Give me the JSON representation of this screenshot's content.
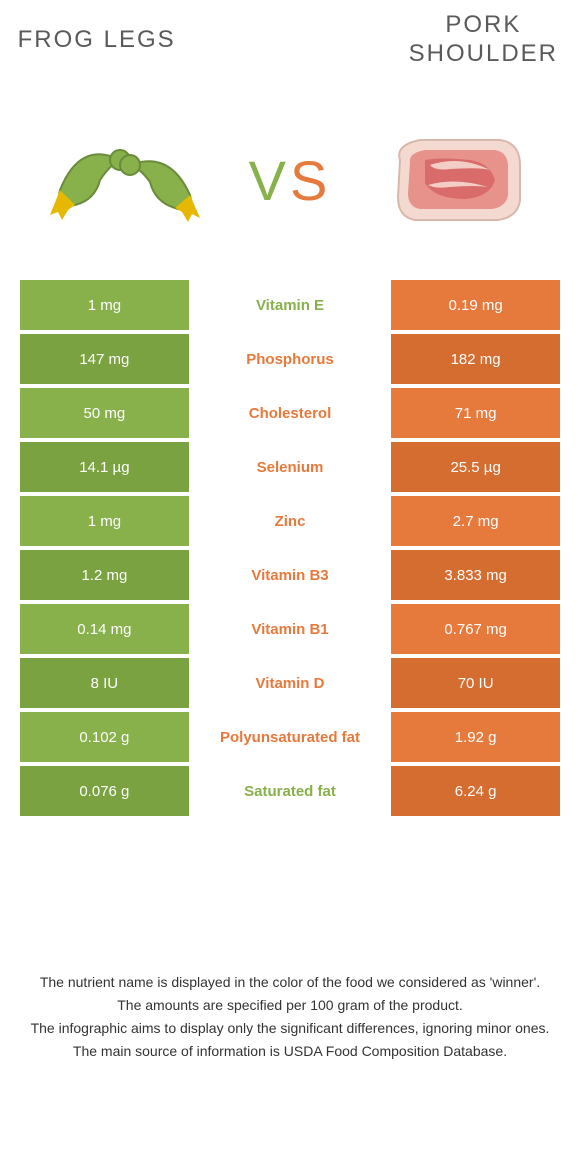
{
  "colors": {
    "left": "#88b04b",
    "right": "#e67a3c",
    "left_dark": "#7aa240",
    "right_dark": "#d56c30"
  },
  "foods": {
    "left": {
      "name": "Frog legs"
    },
    "right": {
      "name": "Pork shoulder"
    }
  },
  "vs_label": "VS",
  "rows": [
    {
      "nutrient": "Vitamin E",
      "left": "1 mg",
      "right": "0.19 mg",
      "winner": "left"
    },
    {
      "nutrient": "Phosphorus",
      "left": "147 mg",
      "right": "182 mg",
      "winner": "right"
    },
    {
      "nutrient": "Cholesterol",
      "left": "50 mg",
      "right": "71 mg",
      "winner": "right"
    },
    {
      "nutrient": "Selenium",
      "left": "14.1 µg",
      "right": "25.5 µg",
      "winner": "right"
    },
    {
      "nutrient": "Zinc",
      "left": "1 mg",
      "right": "2.7 mg",
      "winner": "right"
    },
    {
      "nutrient": "Vitamin B3",
      "left": "1.2 mg",
      "right": "3.833 mg",
      "winner": "right"
    },
    {
      "nutrient": "Vitamin B1",
      "left": "0.14 mg",
      "right": "0.767 mg",
      "winner": "right"
    },
    {
      "nutrient": "Vitamin D",
      "left": "8 IU",
      "right": "70 IU",
      "winner": "right"
    },
    {
      "nutrient": "Polyunsaturated fat",
      "left": "0.102 g",
      "right": "1.92 g",
      "winner": "right"
    },
    {
      "nutrient": "Saturated fat",
      "left": "0.076 g",
      "right": "6.24 g",
      "winner": "left"
    }
  ],
  "footer": [
    "The nutrient name is displayed in the color of the food we considered as 'winner'.",
    "The amounts are specified per 100 gram of the product.",
    "The infographic aims to display only the significant differences, ignoring minor ones.",
    "The main source of information is USDA Food Composition Database."
  ]
}
